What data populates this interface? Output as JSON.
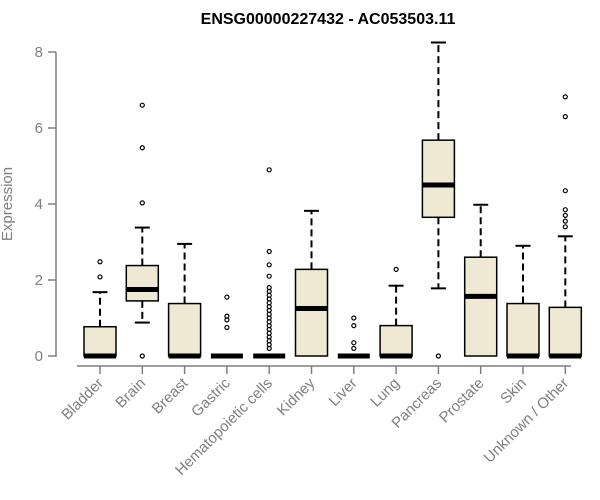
{
  "chart_data": {
    "type": "boxplot",
    "title": "ENSG00000227432 - AC053503.11",
    "xlabel": "",
    "ylabel": "Expression",
    "ylim": [
      0,
      8.3
    ],
    "yticks": [
      0,
      2,
      4,
      6,
      8
    ],
    "grid": false,
    "legend": "none",
    "colors": {
      "box_fill": "#efe8d2",
      "median": "#000000",
      "axis": "#7f7f7f",
      "title": "#000000"
    },
    "categories": [
      "Bladder",
      "Brain",
      "Breast",
      "Gastric",
      "Hematopoietic cells",
      "Kidney",
      "Liver",
      "Lung",
      "Pancreas",
      "Prostate",
      "Skin",
      "Unknown / Other"
    ],
    "boxes": [
      {
        "label": "Bladder",
        "min": 0,
        "q1": 0,
        "median": 0,
        "q3": 0.77,
        "max": 1.68,
        "outliers": [
          2.08,
          2.48
        ]
      },
      {
        "label": "Brain",
        "min": 0.88,
        "q1": 1.45,
        "median": 1.75,
        "q3": 2.38,
        "max": 3.38,
        "outliers": [
          0,
          4.03,
          5.48,
          6.6
        ]
      },
      {
        "label": "Breast",
        "min": 0,
        "q1": 0,
        "median": 0,
        "q3": 1.38,
        "max": 2.95,
        "outliers": []
      },
      {
        "label": "Gastric",
        "min": 0,
        "q1": 0,
        "median": 0,
        "q3": 0,
        "max": 0,
        "outliers": [
          0.75,
          0.95,
          1.05,
          1.55
        ]
      },
      {
        "label": "Hematopoietic cells",
        "min": 0,
        "q1": 0,
        "median": 0,
        "q3": 0,
        "max": 0,
        "outliers": [
          0.2,
          0.3,
          0.4,
          0.5,
          0.6,
          0.7,
          0.8,
          0.9,
          1.0,
          1.1,
          1.2,
          1.3,
          1.4,
          1.5,
          1.6,
          1.7,
          1.8,
          2.1,
          2.4,
          2.75,
          4.9
        ]
      },
      {
        "label": "Kidney",
        "min": 0,
        "q1": 0,
        "median": 1.25,
        "q3": 2.28,
        "max": 3.82,
        "outliers": []
      },
      {
        "label": "Liver",
        "min": 0,
        "q1": 0,
        "median": 0,
        "q3": 0,
        "max": 0,
        "outliers": [
          0.2,
          0.35,
          0.8,
          1.0
        ]
      },
      {
        "label": "Lung",
        "min": 0,
        "q1": 0,
        "median": 0,
        "q3": 0.8,
        "max": 1.85,
        "outliers": [
          2.28
        ]
      },
      {
        "label": "Pancreas",
        "min": 1.78,
        "q1": 3.65,
        "median": 4.5,
        "q3": 5.68,
        "max": 8.25,
        "outliers": [
          0
        ]
      },
      {
        "label": "Prostate",
        "min": 0,
        "q1": 0,
        "median": 1.57,
        "q3": 2.6,
        "max": 3.98,
        "outliers": []
      },
      {
        "label": "Skin",
        "min": 0,
        "q1": 0,
        "median": 0,
        "q3": 1.38,
        "max": 2.9,
        "outliers": []
      },
      {
        "label": "Unknown / Other",
        "min": 0,
        "q1": 0,
        "median": 0,
        "q3": 1.28,
        "max": 3.15,
        "outliers": [
          3.4,
          3.55,
          3.7,
          3.85,
          4.35,
          6.3,
          6.82
        ]
      }
    ]
  }
}
